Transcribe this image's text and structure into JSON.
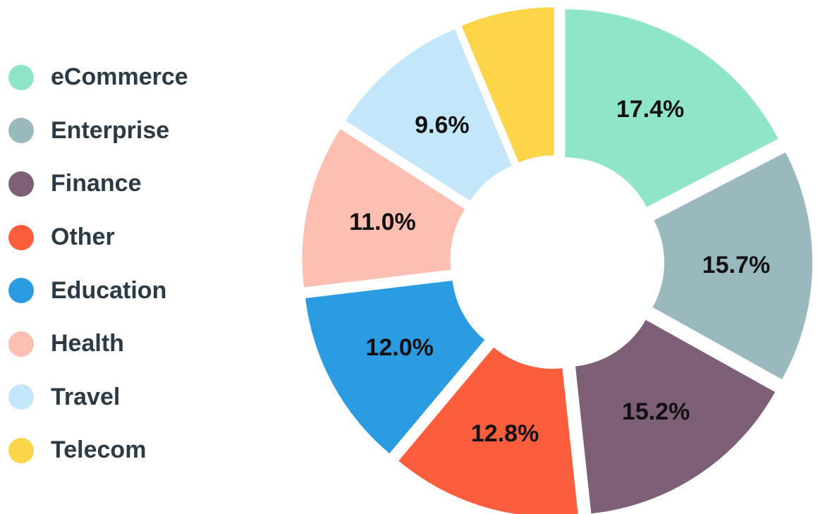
{
  "chart_data": {
    "type": "pie",
    "variant": "donut-exploded",
    "legend_position": "left",
    "slices": [
      {
        "name": "eCommerce",
        "value": 17.4,
        "label": "17.4%",
        "color": "#8fe5c9"
      },
      {
        "name": "Enterprise",
        "value": 15.7,
        "label": "15.7%",
        "color": "#9ab9be"
      },
      {
        "name": "Finance",
        "value": 15.2,
        "label": "15.2%",
        "color": "#7d5f78"
      },
      {
        "name": "Other",
        "value": 12.8,
        "label": "12.8%",
        "color": "#fc5e3d"
      },
      {
        "name": "Education",
        "value": 12.0,
        "label": "12.0%",
        "color": "#2b9ce2"
      },
      {
        "name": "Health",
        "value": 11.0,
        "label": "11.0%",
        "color": "#fdbfb2"
      },
      {
        "name": "Travel",
        "value": 9.6,
        "label": "9.6%",
        "color": "#c4e6fa"
      },
      {
        "name": "Telecom",
        "value": 6.3,
        "label": "",
        "color": "#fcd549"
      }
    ]
  }
}
